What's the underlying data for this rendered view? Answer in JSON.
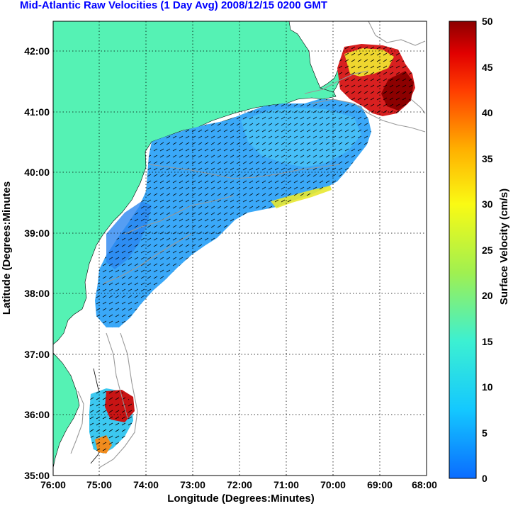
{
  "title": "Mid-Atlantic Raw Velocities (1 Day Avg) 2008/12/15 0200 GMT",
  "axes": {
    "xlabel": "Longitude (Degrees:Minutes)",
    "ylabel": "Latitude (Degrees:Minutes",
    "x_ticks": [
      "76:00",
      "75:00",
      "74:00",
      "73:00",
      "72:00",
      "71:00",
      "70:00",
      "69:00",
      "68:00"
    ],
    "y_ticks": [
      "42:00",
      "41:00",
      "40:00",
      "39:00",
      "38:00",
      "37:00",
      "36:00",
      "35:00"
    ],
    "xlim": [
      -76,
      -68
    ],
    "ylim": [
      35,
      42.5
    ],
    "grid": "dotted"
  },
  "colorbar": {
    "label": "Surface Velocity (cm/s)",
    "ticks": [
      "50",
      "45",
      "40",
      "35",
      "30",
      "25",
      "20",
      "15",
      "10",
      "5",
      "0"
    ],
    "range": [
      0,
      50
    ]
  },
  "colors": {
    "land": "#55f2b4",
    "ocean_background": "#ffffff",
    "title": "#0000ff",
    "bathymetry": "#999999"
  }
}
